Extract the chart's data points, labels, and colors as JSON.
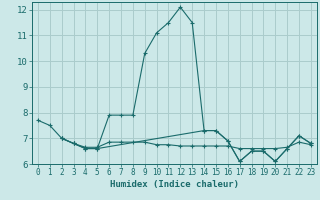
{
  "xlabel": "Humidex (Indice chaleur)",
  "ylabel": "",
  "bg_color": "#cce8e8",
  "grid_color": "#aacccc",
  "line_color": "#1a6b6b",
  "xlim": [
    -0.5,
    23.5
  ],
  "ylim": [
    6,
    12.3
  ],
  "yticks": [
    6,
    7,
    8,
    9,
    10,
    11,
    12
  ],
  "xticks": [
    0,
    1,
    2,
    3,
    4,
    5,
    6,
    7,
    8,
    9,
    10,
    11,
    12,
    13,
    14,
    15,
    16,
    17,
    18,
    19,
    20,
    21,
    22,
    23
  ],
  "series": [
    {
      "x": [
        0,
        1,
        2,
        3,
        4,
        5,
        6,
        7,
        8,
        9,
        10,
        11,
        12,
        13,
        14,
        15,
        16,
        17,
        18,
        19,
        20,
        21,
        22,
        23
      ],
      "y": [
        7.7,
        7.5,
        7.0,
        6.8,
        6.6,
        6.6,
        7.9,
        7.9,
        7.9,
        10.3,
        11.1,
        11.5,
        12.1,
        11.5,
        7.3,
        7.3,
        6.9,
        6.1,
        6.5,
        6.5,
        6.1,
        6.6,
        7.1,
        6.8
      ]
    },
    {
      "x": [
        2,
        3,
        4,
        5,
        6,
        7,
        8,
        9,
        10,
        11,
        12,
        13,
        14,
        15,
        16,
        17,
        18,
        19,
        20,
        21,
        22,
        23
      ],
      "y": [
        7.0,
        6.8,
        6.65,
        6.65,
        6.85,
        6.85,
        6.85,
        6.85,
        6.75,
        6.75,
        6.7,
        6.7,
        6.7,
        6.7,
        6.7,
        6.6,
        6.6,
        6.6,
        6.6,
        6.65,
        6.85,
        6.75
      ]
    },
    {
      "x": [
        2,
        3,
        4,
        5,
        14,
        15,
        16,
        17,
        18,
        19,
        20,
        21,
        22,
        23
      ],
      "y": [
        7.0,
        6.8,
        6.6,
        6.6,
        7.3,
        7.3,
        6.9,
        6.1,
        6.5,
        6.5,
        6.1,
        6.6,
        7.1,
        6.8
      ]
    }
  ]
}
